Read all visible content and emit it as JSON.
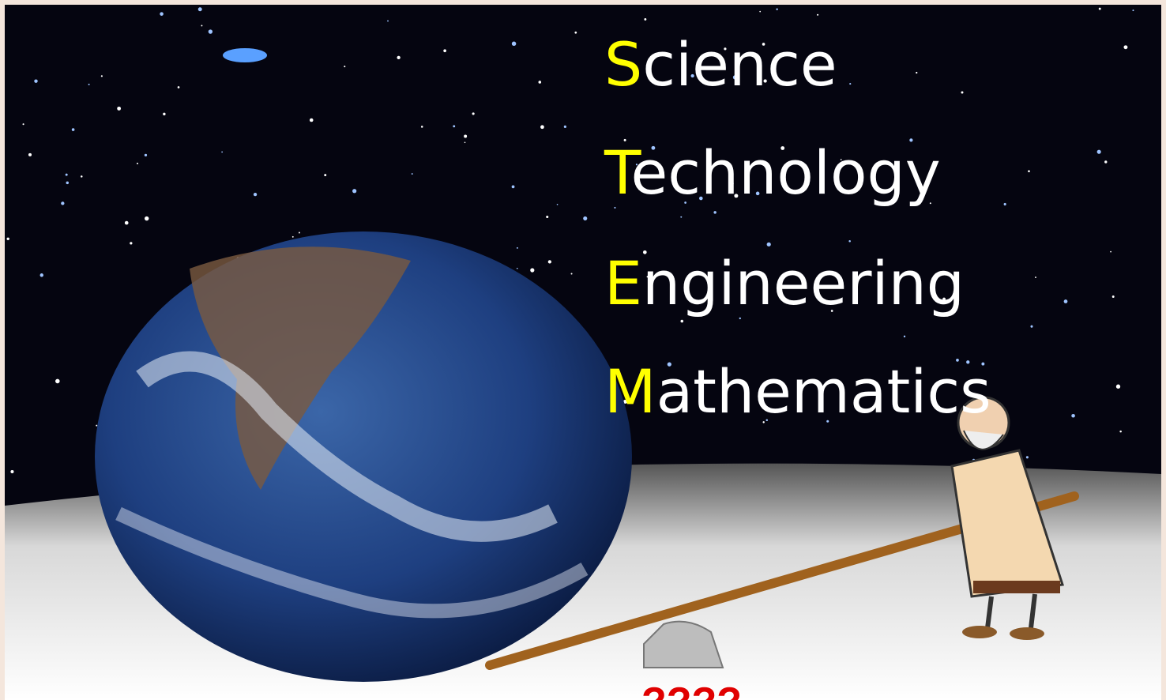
{
  "lines": [
    {
      "initial": "S",
      "rest": "cience"
    },
    {
      "initial": "T",
      "rest": "echnology"
    },
    {
      "initial": "E",
      "rest": "ngineering"
    },
    {
      "initial": "M",
      "rest": "athematics"
    }
  ],
  "caption": "????"
}
